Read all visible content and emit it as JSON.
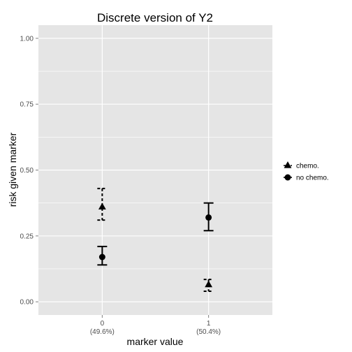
{
  "chart_data": {
    "type": "scatter",
    "title": "Discrete version of Y2",
    "xlabel": "marker value",
    "ylabel": "risk given marker",
    "categories": [
      "0",
      "1"
    ],
    "category_sublabels": [
      "(49.6%)",
      "(50.4%)"
    ],
    "ylim": [
      -0.05,
      1.05
    ],
    "yticks": [
      0.0,
      0.25,
      0.5,
      0.75,
      1.0
    ],
    "ytick_labels": [
      "0.00",
      "0.25",
      "0.50",
      "0.75",
      "1.00"
    ],
    "grid": true,
    "legend_position": "right",
    "series": [
      {
        "name": "chemo.",
        "marker": "triangle",
        "line_style": "dashed",
        "values": [
          0.36,
          0.065
        ],
        "lower": [
          0.31,
          0.04
        ],
        "upper": [
          0.43,
          0.085
        ]
      },
      {
        "name": "no chemo.",
        "marker": "circle",
        "line_style": "solid",
        "values": [
          0.17,
          0.32
        ],
        "lower": [
          0.14,
          0.27
        ],
        "upper": [
          0.21,
          0.375
        ]
      }
    ],
    "colors": {
      "panel": "#e5e5e5",
      "grid": "#ffffff",
      "marks": "#000000",
      "tick_text": "#4d4d4d"
    }
  }
}
